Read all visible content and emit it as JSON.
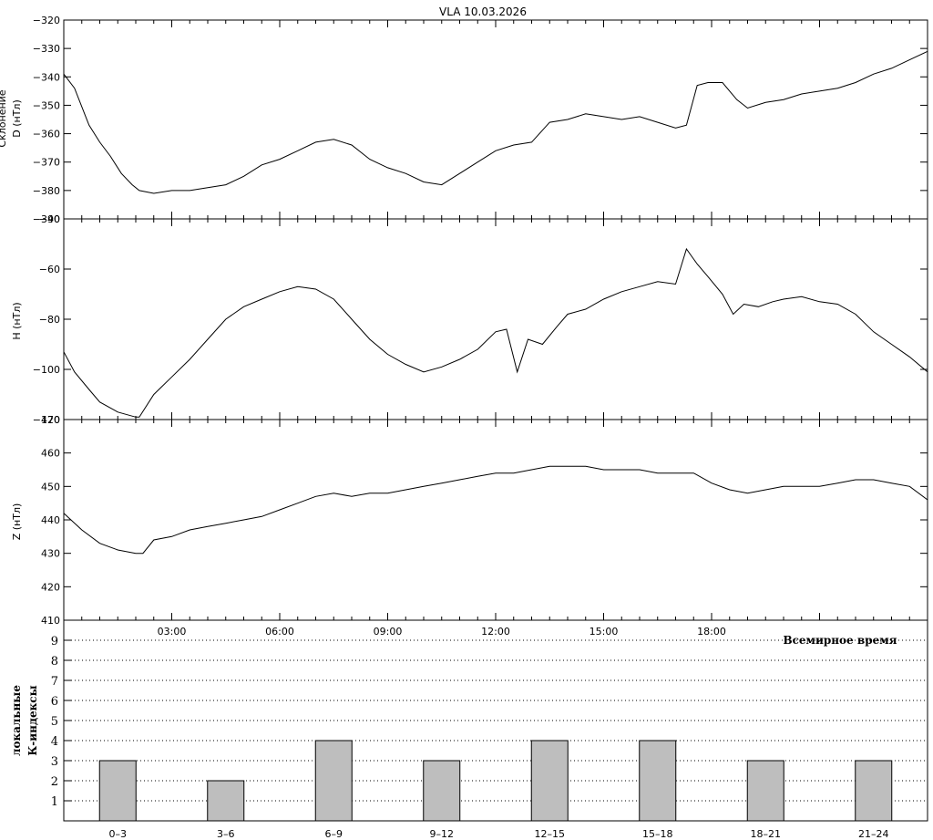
{
  "title": "VLA   10.03.2026",
  "chart_data": [
    {
      "type": "line",
      "panel": "D",
      "ylabel": "D (нТл)",
      "ylabel_partial": "Склонение",
      "ylim": [
        -390,
        -320
      ],
      "yticks": [
        -390,
        -380,
        -370,
        -360,
        -350,
        -340,
        -330,
        -320
      ],
      "xlim_hours": [
        0,
        24
      ],
      "series": [
        {
          "x": [
            0,
            0.3,
            0.7,
            1.0,
            1.3,
            1.6,
            1.9,
            2.1,
            2.5,
            3.0,
            3.5,
            4.0,
            4.5,
            5.0,
            5.5,
            6.0,
            6.5,
            7.0,
            7.5,
            8.0,
            8.5,
            9.0,
            9.5,
            10.0,
            10.5,
            11.0,
            11.5,
            12.0,
            12.5,
            13.0,
            13.5,
            14.0,
            14.5,
            15.0,
            15.5,
            16.0,
            16.5,
            17.0,
            17.3,
            17.6,
            17.9,
            18.3,
            18.7,
            19.0,
            19.5,
            20.0,
            20.5,
            21.0,
            21.5,
            22.0,
            22.5,
            23.0,
            23.5,
            24.0
          ],
          "y": [
            -339,
            -344,
            -357,
            -363,
            -368,
            -374,
            -378,
            -380,
            -381,
            -380,
            -380,
            -379,
            -378,
            -375,
            -371,
            -369,
            -366,
            -363,
            -362,
            -364,
            -369,
            -372,
            -374,
            -377,
            -378,
            -374,
            -370,
            -366,
            -364,
            -363,
            -356,
            -355,
            -353,
            -354,
            -355,
            -354,
            -356,
            -358,
            -357,
            -343,
            -342,
            -342,
            -348,
            -351,
            -349,
            -348,
            -346,
            -345,
            -344,
            -342,
            -339,
            -337,
            -334,
            -331
          ]
        }
      ]
    },
    {
      "type": "line",
      "panel": "H",
      "ylabel": "H (нТл)",
      "ylim": [
        -120,
        -40
      ],
      "yticks": [
        -120,
        -100,
        -80,
        -60,
        -40
      ],
      "xlim_hours": [
        0,
        24
      ],
      "series": [
        {
          "x": [
            0,
            0.3,
            0.7,
            1.0,
            1.5,
            2.0,
            2.1,
            2.5,
            3.0,
            3.5,
            4.0,
            4.5,
            5.0,
            5.5,
            6.0,
            6.5,
            7.0,
            7.5,
            8.0,
            8.5,
            9.0,
            9.5,
            10.0,
            10.5,
            11.0,
            11.5,
            12.0,
            12.3,
            12.6,
            12.9,
            13.3,
            13.7,
            14.0,
            14.5,
            15.0,
            15.5,
            16.0,
            16.5,
            17.0,
            17.3,
            17.6,
            17.9,
            18.3,
            18.6,
            18.9,
            19.3,
            19.7,
            20.0,
            20.5,
            21.0,
            21.5,
            22.0,
            22.5,
            23.0,
            23.5,
            24.0
          ],
          "y": [
            -93,
            -101,
            -108,
            -113,
            -117,
            -119,
            -119,
            -110,
            -103,
            -96,
            -88,
            -80,
            -75,
            -72,
            -69,
            -67,
            -68,
            -72,
            -80,
            -88,
            -94,
            -98,
            -101,
            -99,
            -96,
            -92,
            -85,
            -84,
            -101,
            -88,
            -90,
            -83,
            -78,
            -76,
            -72,
            -69,
            -67,
            -65,
            -66,
            -52,
            -58,
            -63,
            -70,
            -78,
            -74,
            -75,
            -73,
            -72,
            -71,
            -73,
            -74,
            -78,
            -85,
            -90,
            -95,
            -101
          ]
        }
      ]
    },
    {
      "type": "line",
      "panel": "Z",
      "ylabel": "Z (нТл)",
      "ylim": [
        410,
        470
      ],
      "yticks": [
        410,
        420,
        430,
        440,
        450,
        460,
        470
      ],
      "xlim_hours": [
        0,
        24
      ],
      "series": [
        {
          "x": [
            0,
            0.5,
            1.0,
            1.5,
            2.0,
            2.2,
            2.5,
            3.0,
            3.5,
            4.0,
            4.5,
            5.0,
            5.5,
            6.0,
            6.5,
            7.0,
            7.5,
            8.0,
            8.5,
            9.0,
            9.5,
            10.0,
            10.5,
            11.0,
            11.5,
            12.0,
            12.5,
            13.0,
            13.5,
            14.0,
            14.5,
            15.0,
            15.5,
            16.0,
            16.5,
            17.0,
            17.5,
            18.0,
            18.5,
            19.0,
            19.5,
            20.0,
            20.5,
            21.0,
            21.5,
            22.0,
            22.5,
            23.0,
            23.5,
            24.0
          ],
          "y": [
            442,
            437,
            433,
            431,
            430,
            430,
            434,
            435,
            437,
            438,
            439,
            440,
            441,
            443,
            445,
            447,
            448,
            447,
            448,
            448,
            449,
            450,
            451,
            452,
            453,
            454,
            454,
            455,
            456,
            456,
            456,
            455,
            455,
            455,
            454,
            454,
            454,
            451,
            449,
            448,
            449,
            450,
            450,
            450,
            451,
            452,
            452,
            451,
            450,
            446
          ]
        }
      ]
    },
    {
      "type": "bar",
      "panel": "K",
      "ylabel": "локальные К-индексы",
      "ylabel_lines": [
        "локальные",
        "К-индексы"
      ],
      "ylim": [
        0,
        10
      ],
      "yticks": [
        1,
        2,
        3,
        4,
        5,
        6,
        7,
        8,
        9
      ],
      "categories": [
        "0–3",
        "3–6",
        "6–9",
        "9–12",
        "12–15",
        "15–18",
        "18–21",
        "21–24"
      ],
      "values": [
        3,
        2,
        4,
        3,
        4,
        4,
        3,
        3
      ],
      "grid": "dotted horizontal",
      "bar_color": "#bebebe",
      "annotation": "Всемирное время"
    }
  ],
  "time_axis": {
    "tick_labels": [
      "03:00",
      "06:00",
      "09:00",
      "12:00",
      "15:00",
      "18:00"
    ],
    "tick_hours": [
      3,
      6,
      9,
      12,
      15,
      18
    ],
    "label": "Всемирное время"
  }
}
